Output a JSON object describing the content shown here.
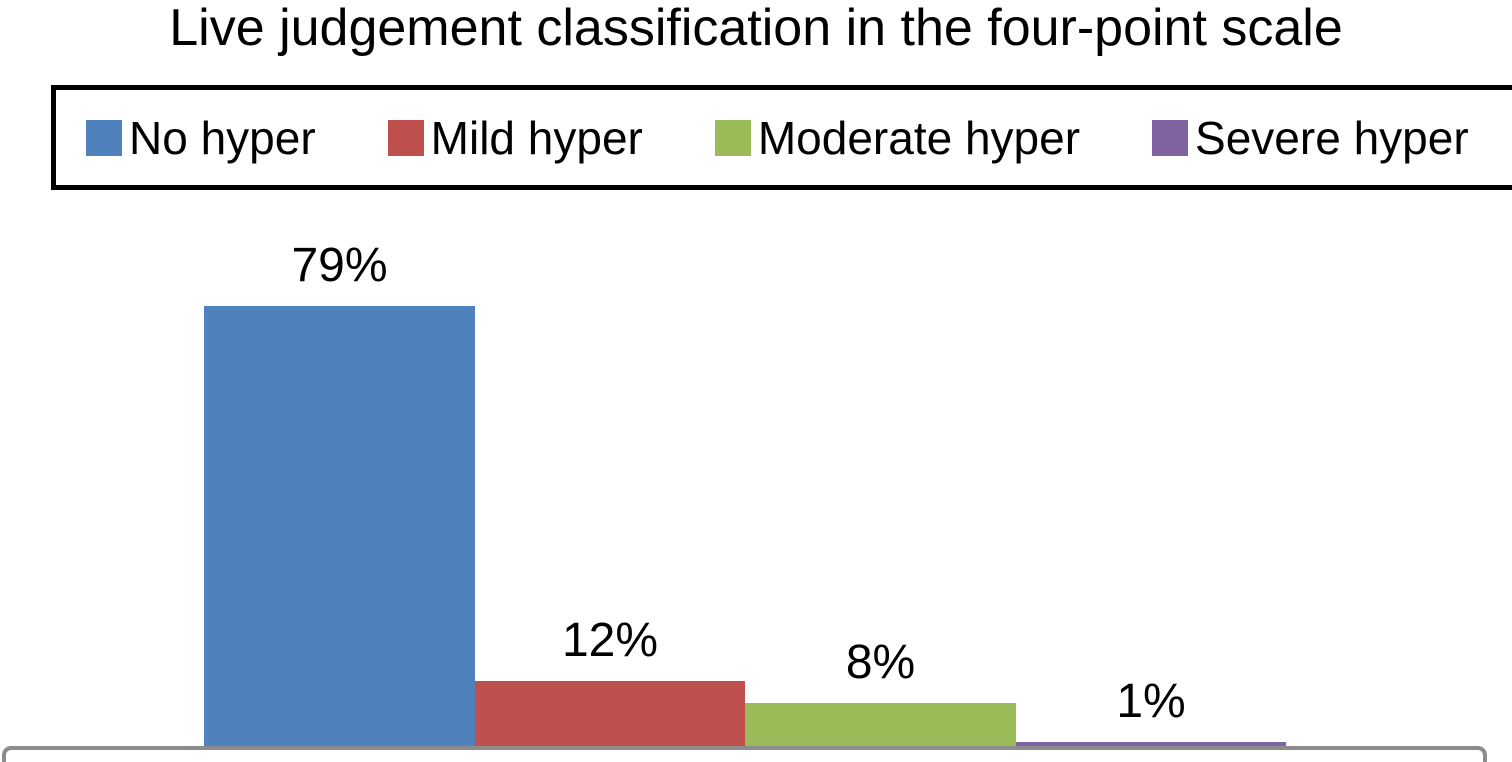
{
  "chart_data": {
    "type": "bar",
    "title": "Live judgement classification in the four-point scale",
    "categories": [
      "No hyper",
      "Mild hyper",
      "Moderate hyper",
      "Severe hyper"
    ],
    "values": [
      79,
      12,
      8,
      1
    ],
    "value_labels": [
      "79%",
      "12%",
      "8%",
      "1%"
    ],
    "unit": "%",
    "colors": [
      "#4F81BD",
      "#C0504D",
      "#9BBB59",
      "#8064A2"
    ],
    "legend": {
      "position": "top",
      "entries": [
        "No hyper",
        "Mild hyper",
        "Moderate hyper",
        "Severe hyper"
      ]
    },
    "value_label_position": "outside-end",
    "xlabel": "",
    "ylabel": "",
    "gridlines": false,
    "x_axis_visible": false,
    "y_axis_visible": false
  },
  "styles": {
    "background": "#FFFFFF",
    "text_color": "#000000",
    "legend_border_color": "#000000",
    "bottom_box_border_color": "#8C8C8C"
  }
}
